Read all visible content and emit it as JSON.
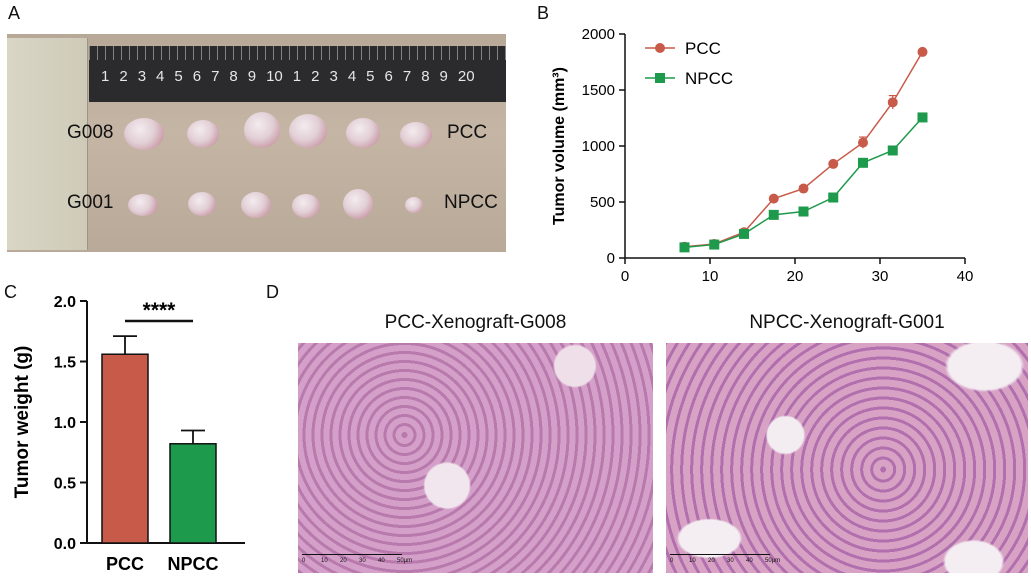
{
  "panels": {
    "a": "A",
    "b": "B",
    "c": "C",
    "d": "D"
  },
  "photo": {
    "ruler_numbers": [
      "1",
      "2",
      "3",
      "4",
      "5",
      "6",
      "7",
      "8",
      "9",
      "10",
      "1",
      "2",
      "3",
      "4",
      "5",
      "6",
      "7",
      "8",
      "9",
      "20"
    ],
    "row_labels_left": [
      "G008",
      "G001"
    ],
    "row_labels_right": [
      "PCC",
      "NPCC"
    ]
  },
  "histology": {
    "left_title": "PCC-Xenograft-G008",
    "right_title": "NPCC-Xenograft-G001",
    "scale_ticks": [
      "0",
      "10",
      "20",
      "30",
      "40",
      "50µm"
    ]
  },
  "colors": {
    "pcc": "#c85a4a",
    "npcc": "#1e9a4c",
    "stain_bg": "#c98bb8"
  },
  "chart_data": [
    {
      "type": "line",
      "panel": "B",
      "ylabel": "Tumor volume (mm³)",
      "xlabel": "",
      "xlim": [
        0,
        40
      ],
      "ylim": [
        0,
        2000
      ],
      "xticks": [
        0,
        10,
        20,
        30,
        40
      ],
      "yticks": [
        0,
        500,
        1000,
        1500,
        2000
      ],
      "legend_position": "top-left",
      "series": [
        {
          "name": "PCC",
          "color": "#c85a4a",
          "marker": "circle",
          "x": [
            7,
            10.5,
            14,
            17.5,
            21,
            24.5,
            28,
            31.5,
            35
          ],
          "y": [
            100,
            125,
            230,
            530,
            620,
            840,
            1030,
            1390,
            1840
          ],
          "err": [
            15,
            15,
            20,
            20,
            25,
            20,
            50,
            60,
            20
          ]
        },
        {
          "name": "NPCC",
          "color": "#1e9a4c",
          "marker": "square",
          "x": [
            7,
            10.5,
            14,
            17.5,
            21,
            24.5,
            28,
            31.5,
            35
          ],
          "y": [
            95,
            120,
            215,
            385,
            415,
            540,
            850,
            960,
            1255
          ],
          "err": [
            10,
            10,
            15,
            15,
            15,
            20,
            20,
            20,
            20
          ]
        }
      ]
    },
    {
      "type": "bar",
      "panel": "C",
      "ylabel": "Tumor weight (g)",
      "ylim": [
        0,
        2.0
      ],
      "yticks": [
        "0.0",
        "0.5",
        "1.0",
        "1.5",
        "2.0"
      ],
      "categories": [
        "PCC",
        "NPCC"
      ],
      "values": [
        1.56,
        0.82
      ],
      "errors": [
        0.15,
        0.11
      ],
      "colors": [
        "#c85a4a",
        "#1e9a4c"
      ],
      "significance": "****"
    }
  ]
}
